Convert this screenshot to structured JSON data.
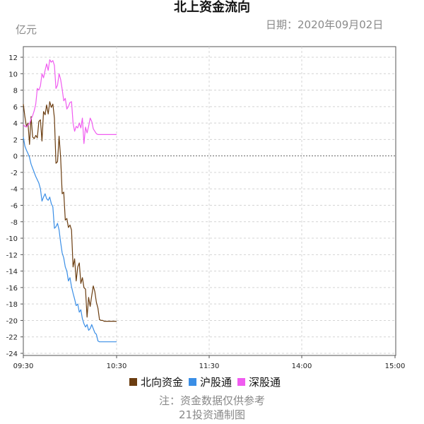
{
  "header": {
    "title": "北上资金流向",
    "unit": "亿元",
    "date": "日期：2020年09月02日"
  },
  "footer": {
    "note_line1": "注：资金数据仅供参考",
    "note_line2": "21投资通制图"
  },
  "colors": {
    "north": "#6b3d10",
    "sh": "#3a8ee6",
    "sz": "#f05cf0",
    "grid": "#d4d4d4",
    "zero_line": "#666666",
    "axis": "#555555"
  },
  "chart_data": {
    "type": "line",
    "ylim": [
      -24,
      13
    ],
    "yticks": [
      "12",
      "10",
      "8",
      "6",
      "4",
      "2",
      "0",
      "-2",
      "-4",
      "-6",
      "-8",
      "-10",
      "-12",
      "-14",
      "-16",
      "-18",
      "-20",
      "-22",
      "-24"
    ],
    "xticks": [
      "09:30",
      "10:30",
      "11:30",
      "14:00",
      "15:00"
    ],
    "grid": true,
    "legend_position": "bottom",
    "series": [
      {
        "name": "北向资金",
        "color_key": "north",
        "x": [
          0,
          1,
          2,
          3,
          4,
          5,
          6,
          7,
          8,
          9,
          10,
          11,
          12,
          13,
          14,
          15,
          16,
          17,
          18,
          19,
          20,
          21,
          22,
          23,
          24,
          25,
          26,
          27,
          28,
          29,
          30,
          31,
          32,
          33,
          34,
          35,
          36,
          37,
          38,
          39,
          40,
          41,
          42,
          43,
          44,
          45,
          46,
          47,
          48,
          49,
          50,
          51,
          52,
          53,
          54,
          55,
          56,
          57,
          58,
          59,
          60
        ],
        "values": [
          6.3,
          4.8,
          3.6,
          4.0,
          1.4,
          4.8,
          2.3,
          2.1,
          2.5,
          2.2,
          4.2,
          4.4,
          1.8,
          5.4,
          5.0,
          6.2,
          5.1,
          6.6,
          5.9,
          6.3,
          4.6,
          -0.9,
          -0.7,
          2.4,
          -0.2,
          -4.6,
          -4.4,
          -7.8,
          -7.6,
          -8.7,
          -8.4,
          -9.0,
          -13.5,
          -12.5,
          -15.2,
          -13.5,
          -13.0,
          -15.5,
          -14.8,
          -16.0,
          -16.2,
          -19.6,
          -17.2,
          -18.3,
          -17.0,
          -15.8,
          -16.5,
          -17.8,
          -18.5,
          -19.9,
          -20.0,
          -20.0,
          -20.1,
          -20.1,
          -20.1,
          -20.1,
          -20.1,
          -20.1,
          -20.1,
          -20.1,
          -20.1
        ]
      },
      {
        "name": "沪股通",
        "color_key": "sh",
        "x": [
          0,
          1,
          2,
          3,
          4,
          5,
          6,
          7,
          8,
          9,
          10,
          11,
          12,
          13,
          14,
          15,
          16,
          17,
          18,
          19,
          20,
          21,
          22,
          23,
          24,
          25,
          26,
          27,
          28,
          29,
          30,
          31,
          32,
          33,
          34,
          35,
          36,
          37,
          38,
          39,
          40,
          41,
          42,
          43,
          44,
          45,
          46,
          47,
          48,
          49,
          50,
          51,
          52,
          53,
          54,
          55,
          56,
          57,
          58,
          59,
          60
        ],
        "values": [
          2.3,
          1.2,
          0.7,
          0.3,
          -0.2,
          -1.0,
          -1.5,
          -2.0,
          -2.5,
          -2.9,
          -3.3,
          -4.0,
          -5.5,
          -5.0,
          -4.6,
          -5.2,
          -5.4,
          -5.0,
          -5.8,
          -6.2,
          -8.8,
          -8.6,
          -8.2,
          -9.0,
          -10.5,
          -11.8,
          -12.4,
          -13.5,
          -14.0,
          -15.2,
          -14.8,
          -15.9,
          -16.7,
          -17.4,
          -18.2,
          -18.0,
          -19.0,
          -18.7,
          -19.8,
          -20.4,
          -20.8,
          -20.5,
          -21.2,
          -21.0,
          -20.5,
          -21.0,
          -21.5,
          -21.7,
          -22.5,
          -22.6,
          -22.6,
          -22.6,
          -22.6,
          -22.6,
          -22.6,
          -22.6,
          -22.6,
          -22.6,
          -22.6,
          -22.6,
          -22.6
        ]
      },
      {
        "name": "深股通",
        "color_key": "sz",
        "x": [
          0,
          1,
          2,
          3,
          4,
          5,
          6,
          7,
          8,
          9,
          10,
          11,
          12,
          13,
          14,
          15,
          16,
          17,
          18,
          19,
          20,
          21,
          22,
          23,
          24,
          25,
          26,
          27,
          28,
          29,
          30,
          31,
          32,
          33,
          34,
          35,
          36,
          37,
          38,
          39,
          40,
          41,
          42,
          43,
          44,
          45,
          46,
          47,
          48,
          49,
          50,
          51,
          52,
          53,
          54,
          55,
          56,
          57,
          58,
          59,
          60
        ],
        "values": [
          3.8,
          3.6,
          3.5,
          3.8,
          3.9,
          4.5,
          4.9,
          5.5,
          6.3,
          8.2,
          8.0,
          8.5,
          10.0,
          9.5,
          10.4,
          11.2,
          10.4,
          11.7,
          11.4,
          11.6,
          11.0,
          8.2,
          8.6,
          10.0,
          9.3,
          8.1,
          6.7,
          7.0,
          5.7,
          6.0,
          6.5,
          6.6,
          4.0,
          3.0,
          3.6,
          3.4,
          4.0,
          3.4,
          4.6,
          1.5,
          3.5,
          2.8,
          3.6,
          4.6,
          4.2,
          3.3,
          3.0,
          2.7,
          2.6,
          2.6,
          2.6,
          2.6,
          2.6,
          2.6,
          2.6,
          2.6,
          2.6,
          2.6,
          2.6,
          2.6,
          2.6
        ]
      }
    ]
  }
}
